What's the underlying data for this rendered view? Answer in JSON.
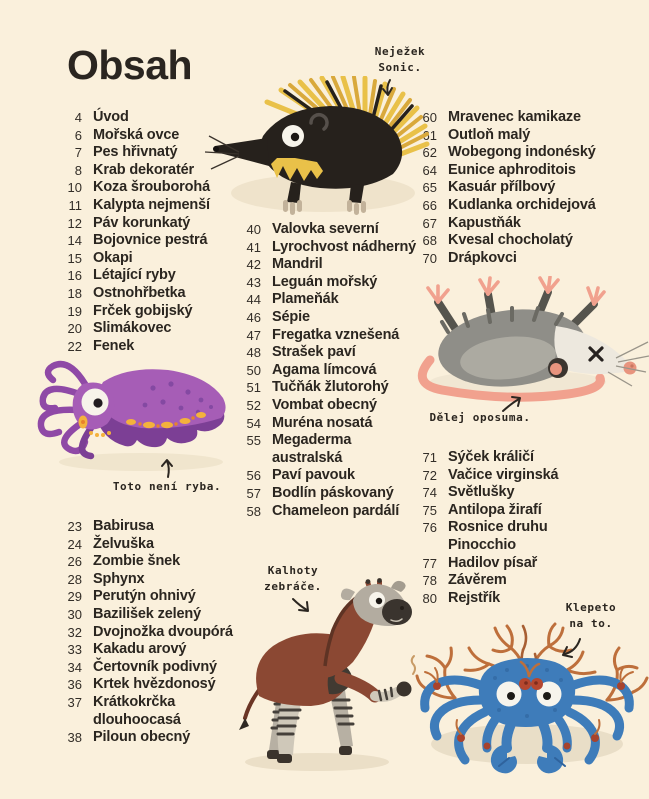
{
  "page": {
    "title": "Obsah",
    "background_color": "#FAF0DC",
    "text_color": "#2B2620"
  },
  "toc": {
    "col1a": [
      {
        "num": "4",
        "lines": [
          "Úvod"
        ]
      },
      {
        "num": "6",
        "lines": [
          "Mořská ovce"
        ]
      },
      {
        "num": "7",
        "lines": [
          "Pes hřivnatý"
        ]
      },
      {
        "num": "8",
        "lines": [
          "Krab dekoratér"
        ]
      },
      {
        "num": "10",
        "lines": [
          "Koza šrouborohá"
        ]
      },
      {
        "num": "11",
        "lines": [
          "Kalypta nejmenší"
        ]
      },
      {
        "num": "12",
        "lines": [
          "Páv korunkatý"
        ]
      },
      {
        "num": "14",
        "lines": [
          "Bojovnice pestrá"
        ]
      },
      {
        "num": "15",
        "lines": [
          "Okapi"
        ]
      },
      {
        "num": "16",
        "lines": [
          "Létající ryby"
        ]
      },
      {
        "num": "18",
        "lines": [
          "Ostnohřbetka"
        ]
      },
      {
        "num": "19",
        "lines": [
          "Frček gobijský"
        ]
      },
      {
        "num": "20",
        "lines": [
          "Slimákovec"
        ]
      },
      {
        "num": "22",
        "lines": [
          "Fenek"
        ]
      }
    ],
    "col1b": [
      {
        "num": "23",
        "lines": [
          "Babirusa"
        ]
      },
      {
        "num": "24",
        "lines": [
          "Želvuška"
        ]
      },
      {
        "num": "26",
        "lines": [
          "Zombie šnek"
        ]
      },
      {
        "num": "28",
        "lines": [
          "Sphynx"
        ]
      },
      {
        "num": "29",
        "lines": [
          "Perutýn ohnivý"
        ]
      },
      {
        "num": "30",
        "lines": [
          "Bazilišek zelený"
        ]
      },
      {
        "num": "32",
        "lines": [
          "Dvojnožka dvoupórá"
        ]
      },
      {
        "num": "33",
        "lines": [
          "Kakadu arový"
        ]
      },
      {
        "num": "34",
        "lines": [
          "Čertovník podivný"
        ]
      },
      {
        "num": "36",
        "lines": [
          "Krtek hvězdonosý"
        ]
      },
      {
        "num": "37",
        "lines": [
          "Krátkokrčka",
          "dlouhoocasá"
        ]
      },
      {
        "num": "38",
        "lines": [
          "Piloun obecný"
        ]
      }
    ],
    "col2": [
      {
        "num": "40",
        "lines": [
          "Valovka severní"
        ]
      },
      {
        "num": "41",
        "lines": [
          "Lyrochvost nádherný"
        ]
      },
      {
        "num": "42",
        "lines": [
          "Mandril"
        ]
      },
      {
        "num": "43",
        "lines": [
          "Leguán mořský"
        ]
      },
      {
        "num": "44",
        "lines": [
          "Plameňák"
        ]
      },
      {
        "num": "46",
        "lines": [
          "Sépie"
        ]
      },
      {
        "num": "47",
        "lines": [
          "Fregatka vznešená"
        ]
      },
      {
        "num": "48",
        "lines": [
          "Strašek paví"
        ]
      },
      {
        "num": "50",
        "lines": [
          "Agama límcová"
        ]
      },
      {
        "num": "51",
        "lines": [
          "Tučňák žlutorohý"
        ]
      },
      {
        "num": "52",
        "lines": [
          "Vombat obecný"
        ]
      },
      {
        "num": "54",
        "lines": [
          "Muréna nosatá"
        ]
      },
      {
        "num": "55",
        "lines": [
          "Megaderma",
          "australská"
        ]
      },
      {
        "num": "56",
        "lines": [
          "Paví pavouk"
        ]
      },
      {
        "num": "57",
        "lines": [
          "Bodlín páskovaný"
        ]
      },
      {
        "num": "58",
        "lines": [
          "Chameleon pardálí"
        ]
      }
    ],
    "col3a": [
      {
        "num": "60",
        "lines": [
          "Mravenec kamikaze"
        ]
      },
      {
        "num": "61",
        "lines": [
          "Outloň malý"
        ]
      },
      {
        "num": "62",
        "lines": [
          "Wobegong indonéský"
        ]
      },
      {
        "num": "64",
        "lines": [
          "Eunice aphroditois"
        ]
      },
      {
        "num": "65",
        "lines": [
          "Kasuár přílbový"
        ]
      },
      {
        "num": "66",
        "lines": [
          "Kudlanka orchidejová"
        ]
      },
      {
        "num": "67",
        "lines": [
          "Kapustňák"
        ]
      },
      {
        "num": "68",
        "lines": [
          "Kvesal chocholatý"
        ]
      },
      {
        "num": "70",
        "lines": [
          "Drápkovci"
        ]
      }
    ],
    "col3b": [
      {
        "num": "71",
        "lines": [
          "Sýček králičí"
        ]
      },
      {
        "num": "72",
        "lines": [
          "Vačice virginská"
        ]
      },
      {
        "num": "74",
        "lines": [
          "Světlušky"
        ]
      },
      {
        "num": "75",
        "lines": [
          "Antilopa žirafí"
        ]
      },
      {
        "num": "76",
        "lines": [
          "Rosnice druhu",
          "Pinocchio"
        ]
      },
      {
        "num": "77",
        "lines": [
          "Hadilov písař"
        ]
      },
      {
        "num": "78",
        "lines": [
          "Závěrem"
        ]
      },
      {
        "num": "80",
        "lines": [
          "Rejstřík"
        ]
      }
    ]
  },
  "captions": {
    "tenrec": {
      "lines": [
        "Neježek",
        "Sonic."
      ]
    },
    "cuttlefish": {
      "lines": [
        "Toto není ryba."
      ]
    },
    "opossum": {
      "lines": [
        "Dělej oposuma."
      ]
    },
    "okapi": {
      "lines": [
        "Kalhoty",
        "zebráče."
      ]
    },
    "crab": {
      "lines": [
        "Klepeto",
        "na to."
      ]
    }
  },
  "illustrations": {
    "names": [
      "tenrec-sonic",
      "purple-cuttlefish",
      "playing-dead-opossum",
      "okapi",
      "blue-decorator-crab"
    ],
    "colors": {
      "tenrec_spike_yellow": "#E9C149",
      "tenrec_body_black": "#26211C",
      "cuttlefish_purple": "#A65DB6",
      "cuttlefish_dark_purple": "#7C3F95",
      "spot_yellow": "#F4B23C",
      "opossum_gray": "#8F8E88",
      "opossum_pink": "#F1A18E",
      "okapi_brown": "#8B4833",
      "okapi_leg_gray": "#CFC8B9",
      "crab_blue": "#3E7CBA",
      "coral_orange": "#BE6F3B",
      "shadow_beige": "#EDE2CB"
    }
  }
}
